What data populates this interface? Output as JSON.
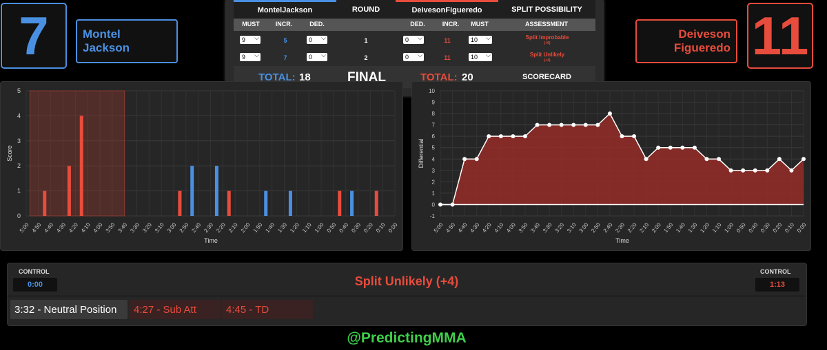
{
  "fighters": {
    "left": {
      "score": "7",
      "first": "Montel",
      "last": "Jackson",
      "color": "#4a90e2"
    },
    "right": {
      "score": "11",
      "first": "Deiveson",
      "last": "Figueredo",
      "color": "#e74c3c"
    }
  },
  "scorecard": {
    "headers": {
      "left_name": "MontelJackson",
      "round": "ROUND",
      "right_name": "DeivesonFigueredo",
      "split": "SPLIT POSSIBILITY"
    },
    "subheaders": {
      "must_l": "MUST",
      "incr_l": "INCR.",
      "ded_l": "DED.",
      "ded_r": "DED.",
      "incr_r": "INCR.",
      "must_r": "MUST",
      "assessment": "ASSESSMENT"
    },
    "rounds": [
      {
        "must_l": "9",
        "incr_l": "5",
        "ded_l": "0",
        "round": "1",
        "ded_r": "0",
        "incr_r": "11",
        "must_r": "10",
        "assessment": "Split Improbable",
        "assessment_sub": "(+6)"
      },
      {
        "must_l": "9",
        "incr_l": "7",
        "ded_l": "0",
        "round": "2",
        "ded_r": "0",
        "incr_r": "11",
        "must_r": "10",
        "assessment": "Split Unlikely",
        "assessment_sub": "(+4)"
      }
    ],
    "footer": {
      "total_label_l": "TOTAL:",
      "total_l": "18",
      "final": "FINAL",
      "total_label_r": "TOTAL:",
      "total_r": "20",
      "scorecard": "SCORECARD"
    }
  },
  "chart_data": [
    {
      "type": "bar",
      "xlabel": "Time",
      "ylabel": "Score",
      "ylim": [
        0,
        5
      ],
      "categories": [
        "5:00",
        "4:50",
        "4:40",
        "4:30",
        "4:20",
        "4:10",
        "4:00",
        "3:50",
        "3:40",
        "3:30",
        "3:20",
        "3:10",
        "3:00",
        "2:50",
        "2:40",
        "2:30",
        "2:20",
        "2:10",
        "2:00",
        "1:50",
        "1:40",
        "1:30",
        "1:20",
        "1:10",
        "1:00",
        "0:50",
        "0:40",
        "0:30",
        "0:20",
        "0:10",
        "0:00"
      ],
      "series": [
        {
          "color": "#e74c3c",
          "points": [
            [
              4.5,
              4
            ],
            [
              3.5,
              2
            ],
            [
              1.5,
              1
            ],
            [
              12.5,
              1
            ],
            [
              16.5,
              1
            ],
            [
              25.5,
              1
            ],
            [
              28.5,
              1
            ]
          ]
        },
        {
          "color": "#4a90e2",
          "points": [
            [
              13.5,
              2
            ],
            [
              15.5,
              2
            ],
            [
              19.5,
              1
            ],
            [
              21.5,
              1
            ],
            [
              26.5,
              1
            ]
          ]
        }
      ],
      "highlight": {
        "from": "4:57",
        "to": "3:40"
      },
      "grid": true
    },
    {
      "type": "area",
      "xlabel": "Time",
      "ylabel": "Differential",
      "ylim": [
        -1,
        10
      ],
      "categories": [
        "5:00",
        "4:50",
        "4:40",
        "4:30",
        "4:20",
        "4:10",
        "4:00",
        "3:50",
        "3:40",
        "3:30",
        "3:20",
        "3:10",
        "3:00",
        "2:50",
        "2:40",
        "2:30",
        "2:20",
        "2:10",
        "2:00",
        "1:50",
        "1:40",
        "1:30",
        "1:20",
        "1:10",
        "1:00",
        "0:50",
        "0:40",
        "0:30",
        "0:20",
        "0:10",
        "0:00"
      ],
      "values": [
        0,
        0,
        4,
        4,
        6,
        6,
        6,
        6,
        7,
        7,
        7,
        7,
        7,
        7,
        8,
        6,
        6,
        4,
        5,
        5,
        5,
        5,
        4,
        4,
        3,
        3,
        3,
        3,
        4,
        3,
        4
      ],
      "color": "#e74c3c",
      "grid": true
    }
  ],
  "bottom": {
    "control_left_label": "CONTROL",
    "control_left_value": "0:00",
    "control_right_label": "CONTROL",
    "control_right_value": "1:13",
    "status": "Split Unlikely (+4)",
    "events": [
      "3:32 - Neutral Position",
      "4:27 - Sub Att",
      "4:45 - TD"
    ]
  },
  "watermark": "@PredictingMMA"
}
